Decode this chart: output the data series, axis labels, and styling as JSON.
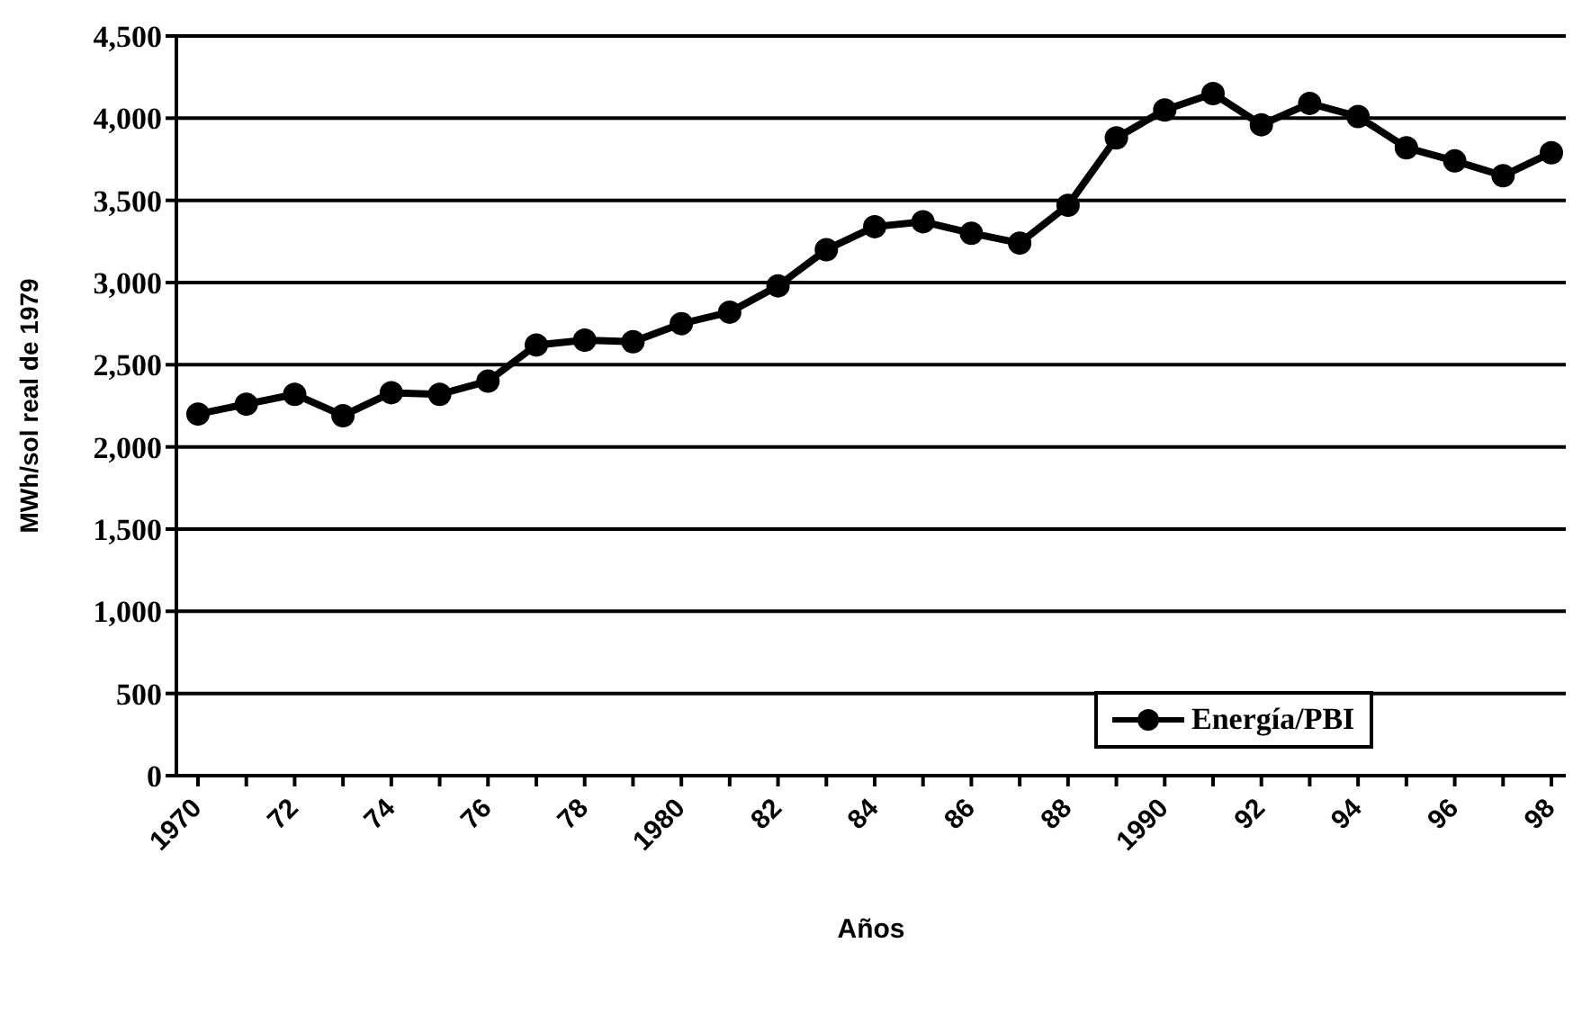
{
  "chart_data": {
    "type": "line",
    "xlabel": "Años",
    "ylabel": "MWh/sol real de 1979",
    "categories": [
      "1970",
      null,
      "72",
      null,
      "74",
      null,
      "76",
      null,
      "78",
      null,
      "1980",
      null,
      "82",
      null,
      "84",
      null,
      "86",
      null,
      "88",
      null,
      "1990",
      null,
      "92",
      null,
      "94",
      null,
      "96",
      null,
      "98"
    ],
    "series": [
      {
        "name": "Energía/PBI",
        "color": "#000000",
        "values": [
          2200,
          2260,
          2320,
          2190,
          2330,
          2320,
          2400,
          2620,
          2650,
          2640,
          2750,
          2820,
          2980,
          3200,
          3340,
          3370,
          3300,
          3240,
          3470,
          3880,
          4050,
          4150,
          3960,
          4090,
          4010,
          3820,
          3740,
          3650,
          3790
        ]
      }
    ],
    "ylim": [
      0,
      4500
    ],
    "yticks": [
      0,
      500,
      {
        "value": 1000,
        "label": "1,000"
      },
      {
        "value": 1500,
        "label": "1,500"
      },
      {
        "value": 2000,
        "label": "2,000"
      },
      {
        "value": 2500,
        "label": "2,500"
      },
      {
        "value": 3000,
        "label": "3,000"
      },
      {
        "value": 3500,
        "label": "3,500"
      },
      {
        "value": 4000,
        "label": "4,000"
      },
      {
        "value": 4500,
        "label": "4,500"
      }
    ],
    "grid": "y",
    "legend": "bottom right",
    "marker": "circle",
    "line_style": "solid"
  }
}
